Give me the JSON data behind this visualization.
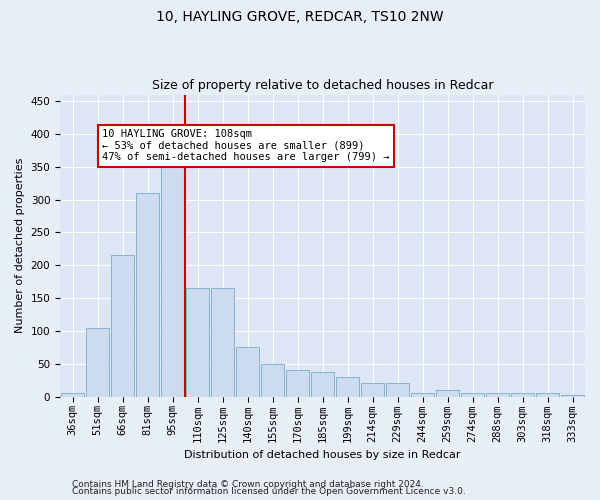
{
  "title1": "10, HAYLING GROVE, REDCAR, TS10 2NW",
  "title2": "Size of property relative to detached houses in Redcar",
  "xlabel": "Distribution of detached houses by size in Redcar",
  "ylabel": "Number of detached properties",
  "categories": [
    "36sqm",
    "51sqm",
    "66sqm",
    "81sqm",
    "95sqm",
    "110sqm",
    "125sqm",
    "140sqm",
    "155sqm",
    "170sqm",
    "185sqm",
    "199sqm",
    "214sqm",
    "229sqm",
    "244sqm",
    "259sqm",
    "274sqm",
    "288sqm",
    "303sqm",
    "318sqm",
    "333sqm"
  ],
  "values": [
    5,
    105,
    215,
    310,
    350,
    165,
    165,
    75,
    50,
    40,
    38,
    30,
    20,
    20,
    5,
    10,
    5,
    5,
    5,
    5,
    3
  ],
  "bar_color": "#ccdcee",
  "bar_edge_color": "#7aabcc",
  "vline_x_index": 5,
  "vline_color": "#cc0000",
  "annotation_line1": "10 HAYLING GROVE: 108sqm",
  "annotation_line2": "← 53% of detached houses are smaller (899)",
  "annotation_line3": "47% of semi-detached houses are larger (799) →",
  "annotation_box_color": "#ffffff",
  "annotation_box_edge": "#cc0000",
  "ylim": [
    0,
    460
  ],
  "yticks": [
    0,
    50,
    100,
    150,
    200,
    250,
    300,
    350,
    400,
    450
  ],
  "background_color": "#e8eef8",
  "plot_bg_color": "#dde6f4",
  "grid_color": "#ffffff",
  "footer1": "Contains HM Land Registry data © Crown copyright and database right 2024.",
  "footer2": "Contains public sector information licensed under the Open Government Licence v3.0.",
  "title_fontsize": 10,
  "subtitle_fontsize": 9,
  "axis_label_fontsize": 8,
  "tick_fontsize": 7.5,
  "annotation_fontsize": 7.5,
  "footer_fontsize": 6.5
}
